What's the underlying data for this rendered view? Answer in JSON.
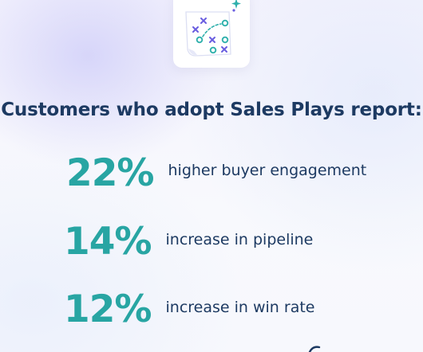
{
  "headline": "Customers who adopt Sales Plays report:",
  "stats": [
    {
      "value": "22%",
      "label": "higher buyer engagement"
    },
    {
      "value": "14%",
      "label": "increase in pipeline"
    },
    {
      "value": "12%",
      "label": "increase in win rate"
    }
  ],
  "icons": {
    "main": "sales-play-diagram-icon",
    "sparkle": "sparkle-icon"
  },
  "colors": {
    "headline": "#1d3a62",
    "stat_value": "#28a5a3",
    "icon_purple": "#6a5ee0",
    "icon_teal": "#2fb0ac"
  }
}
